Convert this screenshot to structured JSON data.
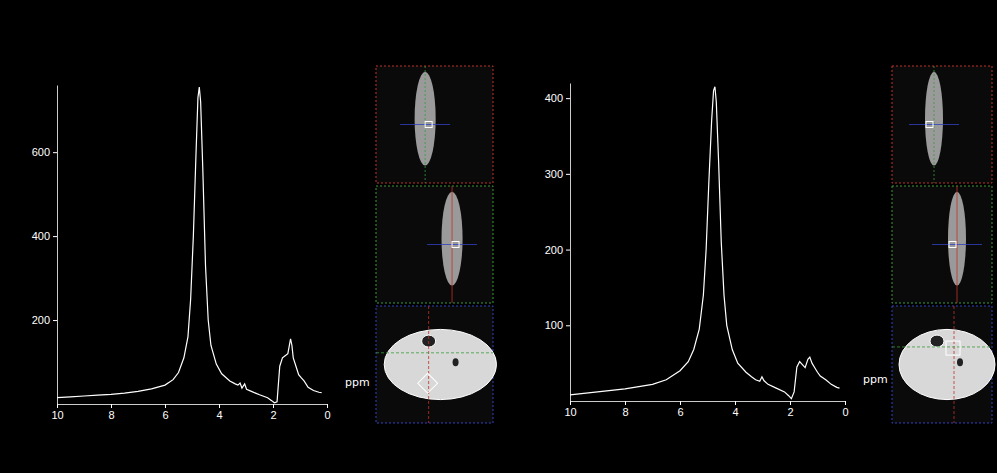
{
  "chart_data": [
    {
      "type": "line",
      "xlabel": "ppm",
      "color": "#ffffff",
      "xlim": [
        10,
        0
      ],
      "xticks": [
        10,
        8,
        6,
        4,
        2,
        0
      ],
      "ylim": [
        0,
        760
      ],
      "yticks": [
        200,
        400,
        600
      ],
      "x": [
        10,
        9.5,
        9,
        8.5,
        8,
        7.5,
        7,
        6.5,
        6,
        5.7,
        5.5,
        5.3,
        5.15,
        5.05,
        4.95,
        4.85,
        4.78,
        4.73,
        4.68,
        4.6,
        4.5,
        4.4,
        4.3,
        4.1,
        3.9,
        3.6,
        3.4,
        3.3,
        3.22,
        3.15,
        3.05,
        2.98,
        2.8,
        2.5,
        2.2,
        2.05,
        1.95,
        1.85,
        1.75,
        1.65,
        1.55,
        1.45,
        1.35,
        1.3,
        1.25,
        1.15,
        1.05,
        0.95,
        0.85,
        0.7,
        0.5,
        0.3,
        0.2
      ],
      "values": [
        15,
        17,
        19,
        21,
        23,
        26,
        30,
        36,
        45,
        58,
        75,
        110,
        160,
        250,
        400,
        600,
        730,
        755,
        720,
        560,
        330,
        200,
        140,
        95,
        72,
        55,
        48,
        45,
        50,
        38,
        48,
        35,
        30,
        22,
        15,
        8,
        3,
        5,
        90,
        110,
        115,
        120,
        155,
        140,
        110,
        90,
        70,
        62,
        55,
        40,
        32,
        28,
        27
      ]
    },
    {
      "type": "line",
      "xlabel": "ppm",
      "color": "#ffffff",
      "xlim": [
        10,
        0
      ],
      "xticks": [
        10,
        8,
        6,
        4,
        2,
        0
      ],
      "ylim": [
        0,
        420
      ],
      "yticks": [
        100,
        200,
        300,
        400
      ],
      "x": [
        10,
        9,
        8,
        7,
        6.5,
        6,
        5.7,
        5.5,
        5.3,
        5.15,
        5.05,
        4.95,
        4.85,
        4.78,
        4.73,
        4.68,
        4.6,
        4.5,
        4.4,
        4.3,
        4.1,
        3.9,
        3.6,
        3.4,
        3.25,
        3.1,
        3.02,
        2.95,
        2.8,
        2.5,
        2.2,
        2.05,
        1.95,
        1.85,
        1.75,
        1.65,
        1.55,
        1.45,
        1.35,
        1.28,
        1.2,
        1.1,
        1.0,
        0.9,
        0.7,
        0.5,
        0.3,
        0.2
      ],
      "values": [
        8,
        12,
        16,
        22,
        28,
        40,
        52,
        68,
        95,
        140,
        200,
        290,
        370,
        410,
        415,
        395,
        320,
        210,
        140,
        100,
        68,
        50,
        38,
        32,
        28,
        26,
        32,
        27,
        22,
        17,
        12,
        7,
        3,
        12,
        45,
        52,
        48,
        44,
        55,
        58,
        50,
        44,
        38,
        33,
        28,
        22,
        18,
        17
      ]
    }
  ]
}
